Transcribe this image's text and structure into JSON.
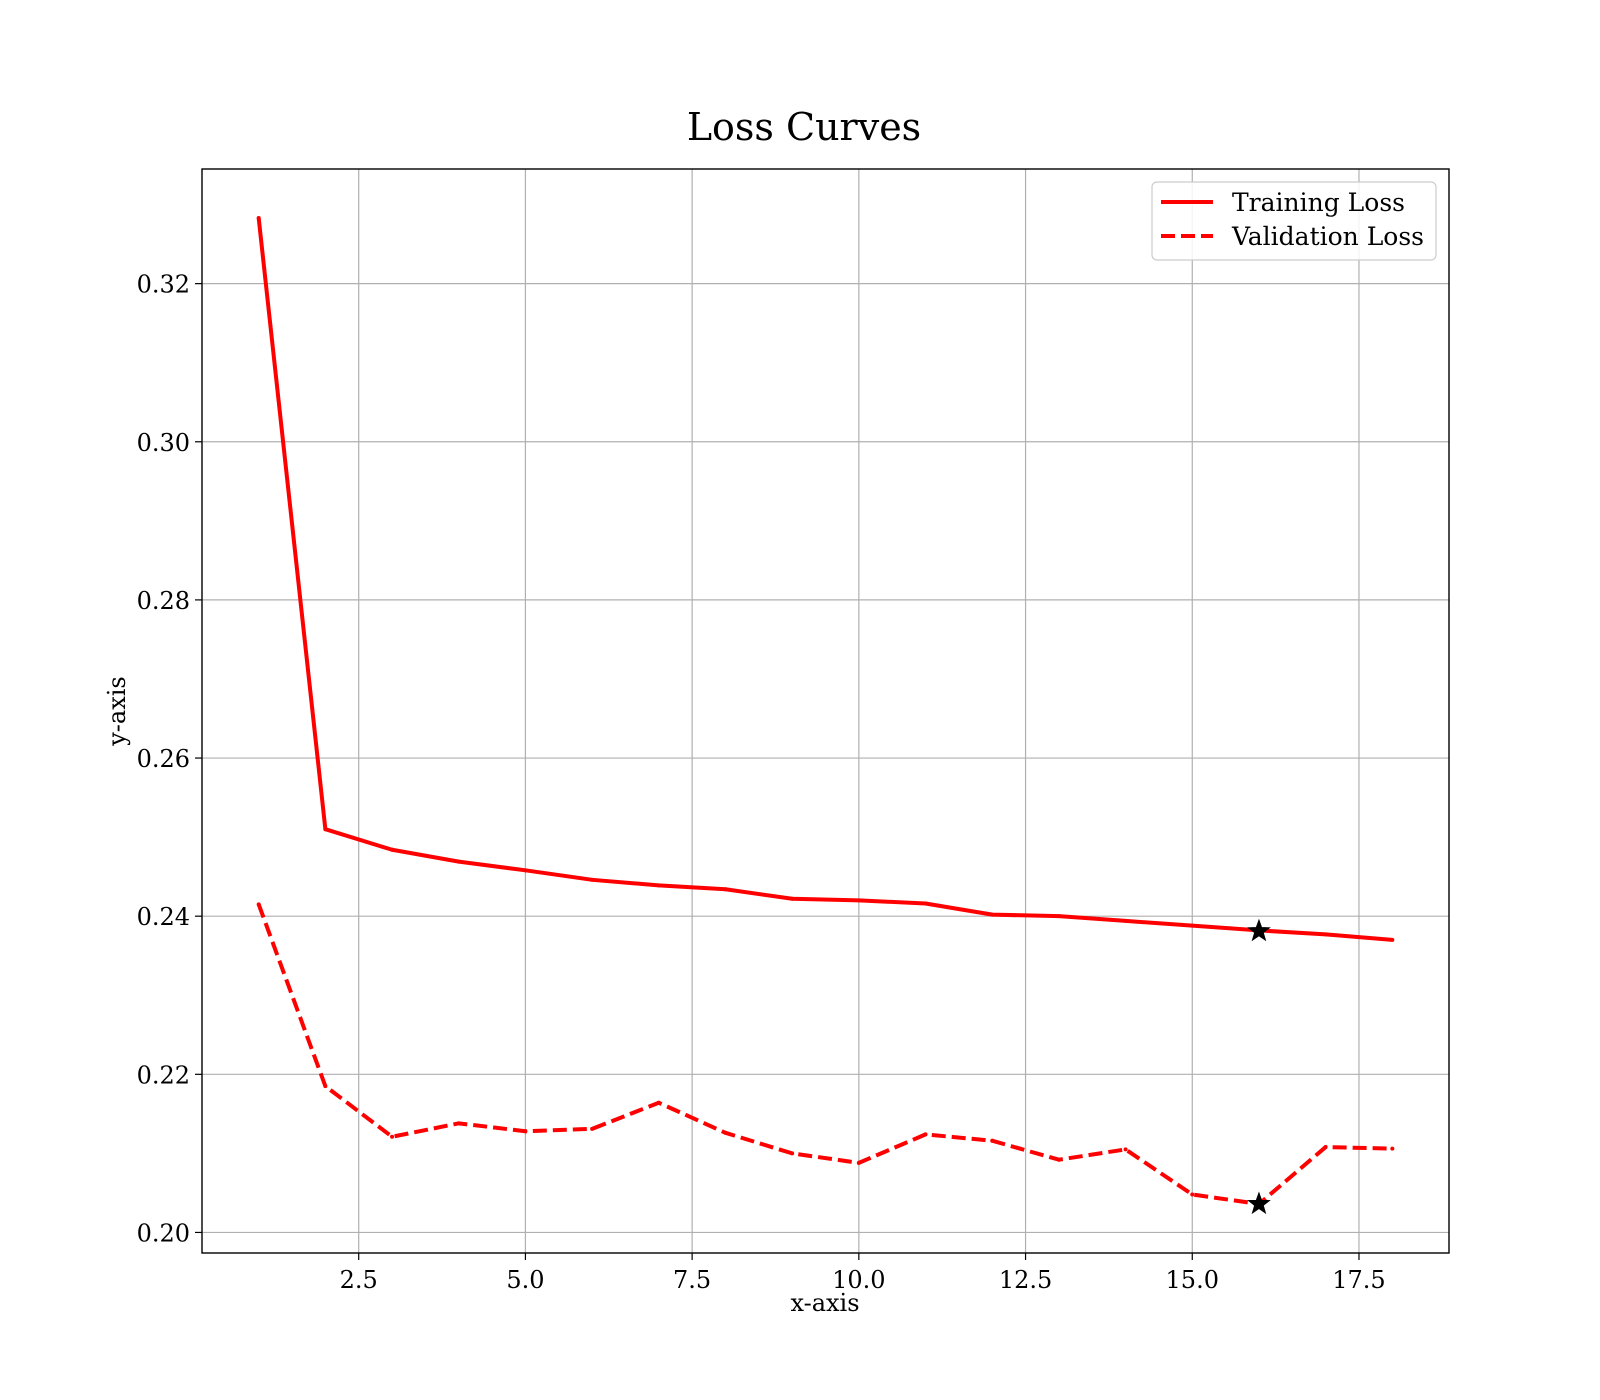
{
  "chart_data": {
    "type": "line",
    "title": "Loss Curves",
    "xlabel": "x-axis",
    "ylabel": "y-axis",
    "xlim": [
      0.15,
      18.85
    ],
    "ylim": [
      0.1974,
      0.3345
    ],
    "xticks": [
      2.5,
      5.0,
      7.5,
      10.0,
      12.5,
      15.0,
      17.5
    ],
    "xtick_labels": [
      "2.5",
      "5.0",
      "7.5",
      "10.0",
      "12.5",
      "15.0",
      "17.5"
    ],
    "yticks": [
      0.2,
      0.22,
      0.24,
      0.26,
      0.28,
      0.3,
      0.32
    ],
    "ytick_labels": [
      "0.20",
      "0.22",
      "0.24",
      "0.26",
      "0.28",
      "0.30",
      "0.32"
    ],
    "grid": true,
    "legend_position": "top-right",
    "x": [
      1,
      2,
      3,
      4,
      5,
      6,
      7,
      8,
      9,
      10,
      11,
      12,
      13,
      14,
      15,
      16,
      17,
      18
    ],
    "series": [
      {
        "name": "Training Loss",
        "color": "#ff0000",
        "style": "solid",
        "values": [
          0.3283,
          0.251,
          0.2484,
          0.2469,
          0.2458,
          0.2446,
          0.2439,
          0.2434,
          0.2422,
          0.242,
          0.2416,
          0.2402,
          0.24,
          0.2394,
          0.2388,
          0.2382,
          0.2377,
          0.237
        ]
      },
      {
        "name": "Validation Loss",
        "color": "#ff0000",
        "style": "dashed",
        "values": [
          0.2415,
          0.2185,
          0.2121,
          0.2138,
          0.2128,
          0.2131,
          0.2164,
          0.2126,
          0.21,
          0.2088,
          0.2124,
          0.2116,
          0.2092,
          0.2105,
          0.2048,
          0.2036,
          0.2108,
          0.2106
        ]
      }
    ],
    "markers": [
      {
        "series": "Training Loss",
        "x": 16,
        "y": 0.2381,
        "symbol": "star",
        "color": "#000000"
      },
      {
        "series": "Validation Loss",
        "x": 16,
        "y": 0.2036,
        "symbol": "star",
        "color": "#000000"
      }
    ]
  }
}
